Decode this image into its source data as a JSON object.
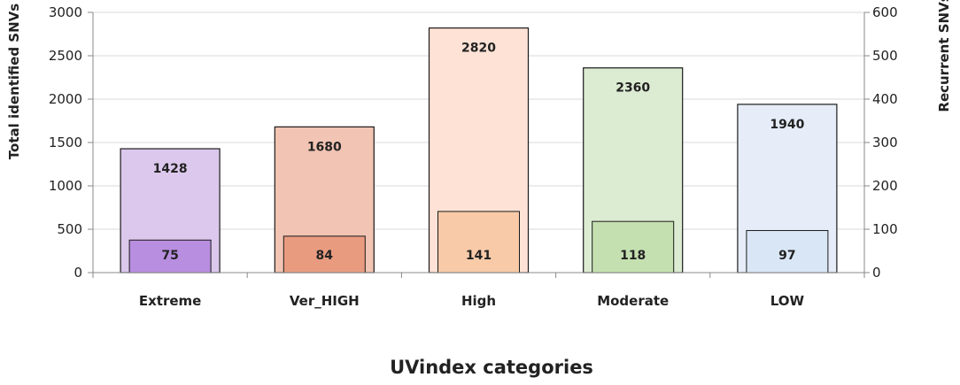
{
  "chart_data": {
    "type": "bar",
    "categories": [
      "Extreme",
      "Ver_HIGH",
      "High",
      "Moderate",
      "LOW"
    ],
    "series": [
      {
        "name": "Total identified SNVs",
        "axis": "left",
        "values": [
          1428,
          1680,
          2820,
          2360,
          1940
        ]
      },
      {
        "name": "Recurrent SNVs",
        "axis": "right",
        "values": [
          75,
          84,
          141,
          118,
          97
        ]
      }
    ],
    "xlabel": "UVindex categories",
    "ylabel": "Total identified SNVs",
    "y2label": "Recurrent SNVs",
    "ylim": [
      0,
      3000
    ],
    "y2lim": [
      0,
      600
    ],
    "yticks": [
      0,
      500,
      1000,
      1500,
      2000,
      2500,
      3000
    ],
    "y2ticks": [
      0,
      100,
      200,
      300,
      400,
      500,
      600
    ],
    "grid": true,
    "colors": {
      "outer_fill": [
        "#dcc8ec",
        "#f2c4b3",
        "#fde2d5",
        "#dcecd2",
        "#e6edf8"
      ],
      "inner_fill": [
        "#b88ee0",
        "#e99b80",
        "#f8caa8",
        "#c4e0b0",
        "#d9e6f5"
      ],
      "outer_stroke": "#1a1a1a",
      "inner_stroke": "#1a1a1a",
      "grid": "#d9d9d9",
      "axis": "#888888"
    }
  }
}
